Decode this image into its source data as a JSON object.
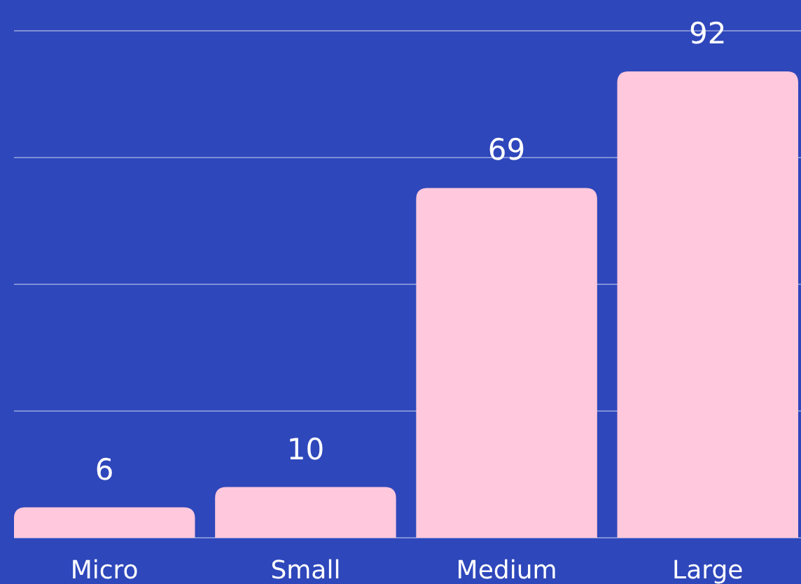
{
  "chart_data": {
    "type": "bar",
    "categories": [
      "Micro",
      "Small",
      "Medium",
      "Large"
    ],
    "values": [
      6,
      10,
      69,
      92
    ],
    "color": "#ffc8dc",
    "data_labels": true,
    "ylim": [
      0,
      100
    ],
    "yticks": [
      {
        "value": 0,
        "label": null
      },
      {
        "value": 25,
        "label": null
      },
      {
        "value": 50,
        "label": null
      },
      {
        "value": 75,
        "label": null
      },
      {
        "value": 100,
        "label": null
      }
    ],
    "grid": "y",
    "tick_labels": "x"
  }
}
